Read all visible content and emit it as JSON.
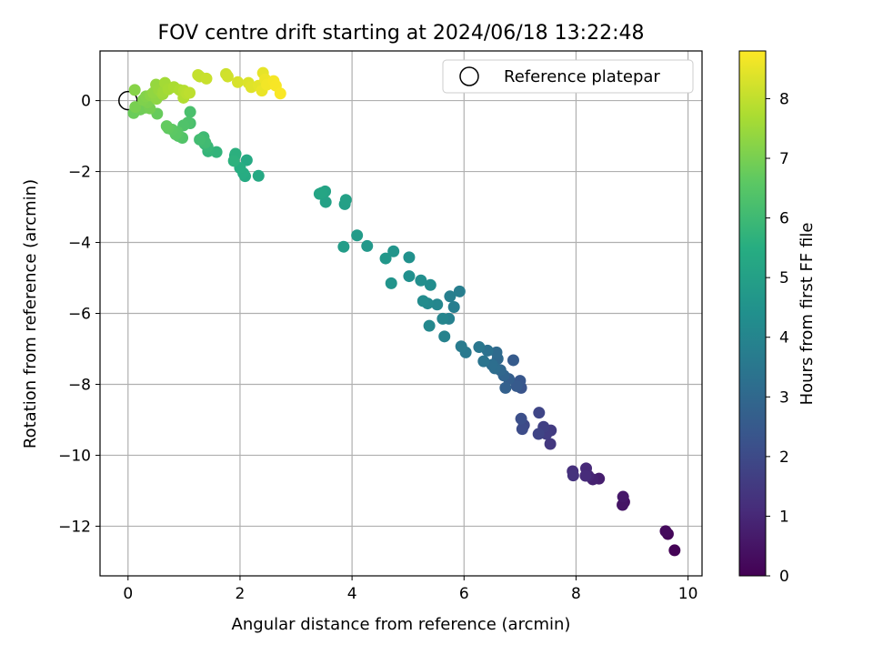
{
  "chart_data": {
    "type": "scatter",
    "title": "FOV centre drift starting at 2024/06/18 13:22:48",
    "xlabel": "Angular distance from reference (arcmin)",
    "ylabel": "Rotation from reference (arcmin)",
    "colorbar_label": "Hours from first FF file",
    "xlim": [
      -0.5,
      10.25
    ],
    "ylim": [
      -13.4,
      1.4
    ],
    "clim": [
      0,
      8.8
    ],
    "xticks": [
      0,
      2,
      4,
      6,
      8,
      10
    ],
    "yticks": [
      0,
      -2,
      -4,
      -6,
      -8,
      -10,
      -12
    ],
    "cticks": [
      0,
      1,
      2,
      3,
      4,
      5,
      6,
      7,
      8
    ],
    "grid": true,
    "colormap": "viridis",
    "legend": {
      "label": "Reference platepar",
      "placement": "top-right"
    },
    "reference_point": {
      "x": 0,
      "y": 0
    },
    "points": [
      [
        9.76,
        -12.68,
        0.05
      ],
      [
        9.64,
        -12.22,
        0.15
      ],
      [
        9.6,
        -12.14,
        0.25
      ],
      [
        8.86,
        -11.32,
        0.4
      ],
      [
        8.83,
        -11.4,
        0.5
      ],
      [
        8.84,
        -11.17,
        0.6
      ],
      [
        8.41,
        -10.66,
        0.75
      ],
      [
        8.3,
        -10.68,
        0.85
      ],
      [
        8.22,
        -10.58,
        0.95
      ],
      [
        8.18,
        -10.37,
        1.05
      ],
      [
        8.17,
        -10.58,
        1.1
      ],
      [
        7.94,
        -10.45,
        1.2
      ],
      [
        7.95,
        -10.57,
        1.3
      ],
      [
        7.54,
        -9.68,
        1.45
      ],
      [
        7.55,
        -9.3,
        1.55
      ],
      [
        7.47,
        -9.4,
        1.6
      ],
      [
        7.42,
        -9.2,
        1.7
      ],
      [
        7.33,
        -9.4,
        1.8
      ],
      [
        7.34,
        -8.8,
        1.85
      ],
      [
        7.07,
        -9.15,
        1.95
      ],
      [
        7.04,
        -9.26,
        2.05
      ],
      [
        7.02,
        -8.97,
        2.15
      ],
      [
        7.02,
        -8.1,
        2.3
      ],
      [
        7.0,
        -7.9,
        2.4
      ],
      [
        6.94,
        -8.05,
        2.5
      ],
      [
        6.88,
        -7.32,
        2.55
      ],
      [
        6.8,
        -7.85,
        2.65
      ],
      [
        6.74,
        -8.1,
        2.75
      ],
      [
        6.71,
        -7.75,
        2.85
      ],
      [
        6.65,
        -7.6,
        2.95
      ],
      [
        6.6,
        -7.28,
        3.0
      ],
      [
        6.58,
        -7.1,
        3.05
      ],
      [
        6.55,
        -7.55,
        3.15
      ],
      [
        6.5,
        -7.45,
        3.2
      ],
      [
        6.42,
        -7.05,
        3.3
      ],
      [
        6.35,
        -7.35,
        3.4
      ],
      [
        6.27,
        -6.95,
        3.5
      ],
      [
        6.03,
        -7.1,
        3.6
      ],
      [
        5.95,
        -6.93,
        3.65
      ],
      [
        5.82,
        -5.82,
        3.75
      ],
      [
        5.75,
        -5.52,
        3.8
      ],
      [
        5.73,
        -6.15,
        3.85
      ],
      [
        5.65,
        -6.65,
        3.9
      ],
      [
        5.62,
        -6.15,
        4.0
      ],
      [
        5.52,
        -5.75,
        4.05
      ],
      [
        5.38,
        -6.35,
        4.1
      ],
      [
        5.35,
        -5.72,
        4.15
      ],
      [
        5.27,
        -5.65,
        4.25
      ],
      [
        5.4,
        -5.2,
        4.3
      ],
      [
        5.23,
        -5.07,
        4.35
      ],
      [
        5.02,
        -4.95,
        4.4
      ],
      [
        5.02,
        -4.42,
        4.45
      ],
      [
        5.92,
        -5.38,
        3.75
      ],
      [
        4.7,
        -5.15,
        4.55
      ],
      [
        4.74,
        -4.25,
        4.6
      ],
      [
        4.6,
        -4.45,
        4.65
      ],
      [
        4.27,
        -4.1,
        4.7
      ],
      [
        4.09,
        -3.8,
        4.8
      ],
      [
        3.85,
        -4.12,
        4.85
      ],
      [
        3.87,
        -2.92,
        4.95
      ],
      [
        3.89,
        -2.8,
        5.0
      ],
      [
        3.53,
        -2.86,
        5.05
      ],
      [
        3.52,
        -2.56,
        5.1
      ],
      [
        3.42,
        -2.63,
        5.15
      ],
      [
        3.46,
        -2.6,
        5.2
      ],
      [
        2.33,
        -2.12,
        5.3
      ],
      [
        2.12,
        -1.68,
        5.35
      ],
      [
        2.09,
        -2.13,
        5.4
      ],
      [
        2.06,
        -2.05,
        5.45
      ],
      [
        2.0,
        -1.9,
        5.5
      ],
      [
        1.91,
        -1.55,
        5.55
      ],
      [
        1.92,
        -1.5,
        5.6
      ],
      [
        1.89,
        -1.7,
        5.65
      ],
      [
        1.58,
        -1.45,
        5.75
      ],
      [
        1.43,
        -1.43,
        5.8
      ],
      [
        1.42,
        -1.3,
        5.85
      ],
      [
        1.37,
        -1.22,
        5.9
      ],
      [
        1.34,
        -1.12,
        5.95
      ],
      [
        1.35,
        -1.03,
        6.0
      ],
      [
        1.38,
        -1.18,
        6.05
      ],
      [
        1.28,
        -1.1,
        6.1
      ],
      [
        1.11,
        -0.64,
        6.2
      ],
      [
        1.11,
        -0.32,
        6.25
      ],
      [
        1.07,
        -0.62,
        6.3
      ],
      [
        0.99,
        -0.7,
        6.35
      ],
      [
        0.97,
        -1.05,
        6.4
      ],
      [
        0.9,
        -1.0,
        6.45
      ],
      [
        0.88,
        -0.88,
        6.5
      ],
      [
        0.85,
        -0.95,
        6.55
      ],
      [
        0.79,
        -0.82,
        6.6
      ],
      [
        0.72,
        -0.78,
        6.65
      ],
      [
        0.69,
        -0.72,
        6.7
      ],
      [
        0.52,
        -0.37,
        6.75
      ],
      [
        0.1,
        -0.35,
        6.8
      ],
      [
        0.22,
        -0.25,
        6.85
      ],
      [
        0.3,
        -0.2,
        6.9
      ],
      [
        0.39,
        -0.22,
        6.95
      ],
      [
        0.13,
        -0.18,
        7.0
      ],
      [
        0.35,
        -0.05,
        7.05
      ],
      [
        0.27,
        0.02,
        7.1
      ],
      [
        0.32,
        0.12,
        7.15
      ],
      [
        0.12,
        0.3,
        7.2
      ],
      [
        0.4,
        0.15,
        7.25
      ],
      [
        0.51,
        0.05,
        7.3
      ],
      [
        0.45,
        0.22,
        7.35
      ],
      [
        0.5,
        0.45,
        7.4
      ],
      [
        0.55,
        0.3,
        7.45
      ],
      [
        0.62,
        0.18,
        7.5
      ],
      [
        0.63,
        0.25,
        7.55
      ],
      [
        0.66,
        0.5,
        7.6
      ],
      [
        0.72,
        0.32,
        7.65
      ],
      [
        0.82,
        0.38,
        7.7
      ],
      [
        0.92,
        0.3,
        7.75
      ],
      [
        0.99,
        0.08,
        7.8
      ],
      [
        1.0,
        0.28,
        7.85
      ],
      [
        1.05,
        0.2,
        7.9
      ],
      [
        1.1,
        0.22,
        7.95
      ],
      [
        1.28,
        0.68,
        8.0
      ],
      [
        1.25,
        0.72,
        8.05
      ],
      [
        1.4,
        0.62,
        8.1
      ],
      [
        1.75,
        0.75,
        8.15
      ],
      [
        1.78,
        0.68,
        8.2
      ],
      [
        1.96,
        0.52,
        8.3
      ],
      [
        2.15,
        0.5,
        8.35
      ],
      [
        2.2,
        0.38,
        8.4
      ],
      [
        2.33,
        0.42,
        8.45
      ],
      [
        2.41,
        0.78,
        8.5
      ],
      [
        2.39,
        0.28,
        8.55
      ],
      [
        2.45,
        0.6,
        8.6
      ],
      [
        2.48,
        0.45,
        8.65
      ],
      [
        2.6,
        0.55,
        8.7
      ],
      [
        2.64,
        0.42,
        8.72
      ],
      [
        2.72,
        0.2,
        8.75
      ]
    ]
  }
}
